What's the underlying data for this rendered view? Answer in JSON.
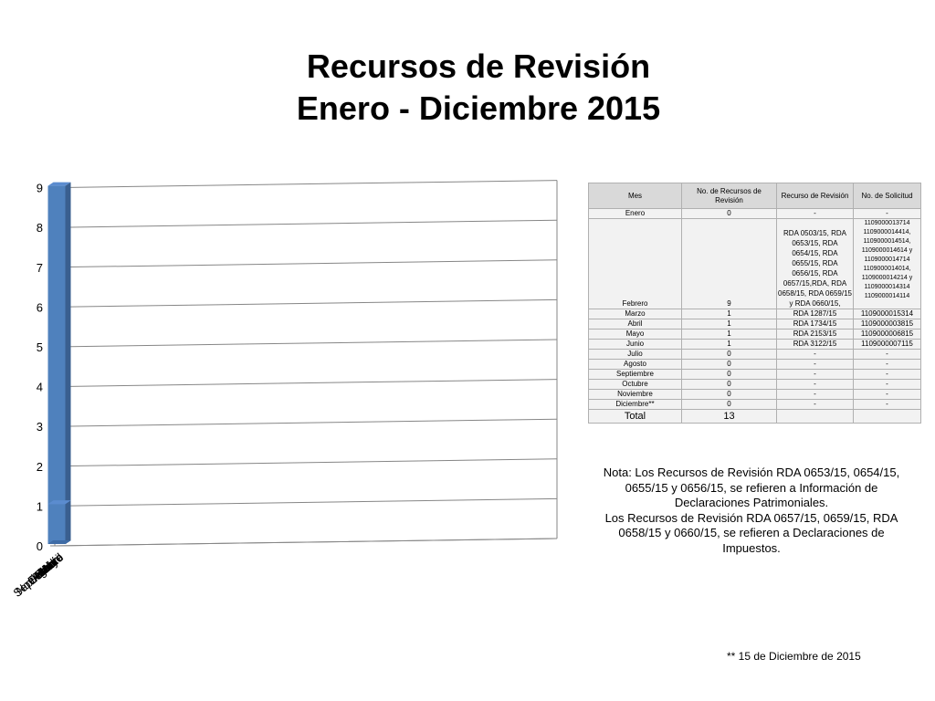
{
  "title": {
    "line1": "Recursos de Revisión",
    "line2": "Enero - Diciembre 2015"
  },
  "chart_data": {
    "type": "bar",
    "categories": [
      "Enero",
      "Febrero",
      "Marzo",
      "Abril",
      "Mayo",
      "Junio",
      "Julio",
      "Agosto",
      "Septiembre",
      "Octubre",
      "Noviembre"
    ],
    "values": [
      0,
      9,
      1,
      1,
      1,
      1,
      0,
      0,
      0,
      0,
      0
    ],
    "ylim": [
      0,
      9
    ],
    "yticks": [
      "0",
      "1",
      "2",
      "3",
      "4",
      "5",
      "6",
      "7",
      "8",
      "9"
    ],
    "grid": true,
    "style": "3d",
    "bar_color": "#4f81bd"
  },
  "table": {
    "headers": [
      "Mes",
      "No. de Recursos de Revisión",
      "Recurso de Revisión",
      "No. de Solicitud"
    ],
    "rows": [
      [
        "Enero",
        "0",
        "-",
        "-"
      ],
      [
        "Febrero",
        "9",
        "RDA 0503/15, RDA 0653/15, RDA 0654/15, RDA 0655/15, RDA 0656/15, RDA 0657/15,RDA, RDA 0658/15, RDA 0659/15 y  RDA 0660/15,",
        "1109000013714 1109000014414, 1109000014514, 1109000014614 y 1109000014714 1109000014014, 1109000014214 y 1109000014314 1109000014114"
      ],
      [
        "Marzo",
        "1",
        "RDA 1287/15",
        "1109000015314"
      ],
      [
        "Abril",
        "1",
        "RDA 1734/15",
        "1109000003815"
      ],
      [
        "Mayo",
        "1",
        "RDA 2153/15",
        "1109000006815"
      ],
      [
        "Junio",
        "1",
        "RDA 3122/15",
        "1109000007115"
      ],
      [
        "Julio",
        "0",
        "-",
        "-"
      ],
      [
        "Agosto",
        "0",
        "-",
        "-"
      ],
      [
        "Septiembre",
        "0",
        "-",
        "-"
      ],
      [
        "Octubre",
        "0",
        "-",
        "-"
      ],
      [
        "Noviembre",
        "0",
        "-",
        "-"
      ],
      [
        "Diciembre**",
        "0",
        "-",
        "-"
      ]
    ],
    "total_label": "Total",
    "total_value": "13"
  },
  "note": {
    "line1": "Nota: Los Recursos de Revisión RDA 0653/15, 0654/15, 0655/15 y 0656/15, se refieren a Información de Declaraciones Patrimoniales.",
    "line2": "Los Recursos de Revisión RDA 0657/15, 0659/15, RDA 0658/15  y 0660/15, se refieren a Declaraciones de Impuestos."
  },
  "footnote": "** 15 de Diciembre de 2015"
}
